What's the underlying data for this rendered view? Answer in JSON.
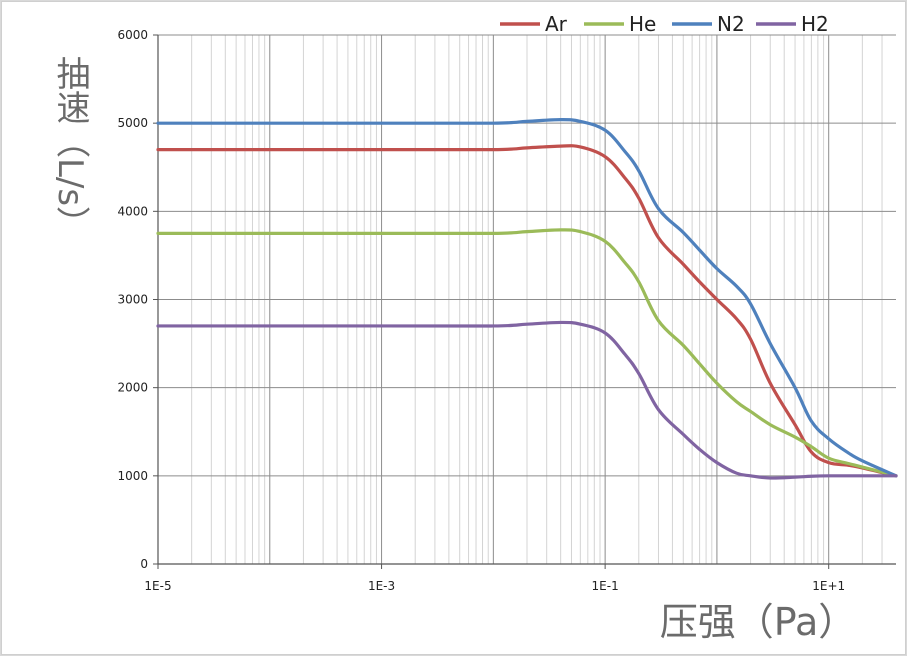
{
  "chart_data": {
    "type": "line",
    "xscale": "log",
    "xlim": [
      1e-05,
      40
    ],
    "ylim": [
      0,
      6000
    ],
    "ylabel": "抽速（L/s）",
    "xlabel": "压强（Pa）",
    "yticks": [
      0,
      1000,
      2000,
      3000,
      4000,
      5000,
      6000
    ],
    "ytick_labels": [
      "0",
      "1000",
      "2000",
      "3000",
      "4000",
      "5000",
      "6000"
    ],
    "xticks": [
      1e-05,
      0.001,
      0.1,
      10
    ],
    "xtick_labels": [
      "1E-5",
      "1E-3",
      "1E-1",
      "1E+1"
    ],
    "grid": true,
    "legend_position": "top",
    "series": [
      {
        "name": "Ar",
        "color": "#c0504d",
        "x": [
          1e-05,
          0.001,
          0.01,
          0.02,
          0.04,
          0.06,
          0.1,
          0.15,
          0.2,
          0.3,
          0.5,
          0.7,
          1,
          1.5,
          2,
          3,
          5,
          7,
          10,
          15,
          20,
          40
        ],
        "values": [
          4700,
          4700,
          4700,
          4720,
          4740,
          4730,
          4620,
          4380,
          4150,
          3700,
          3400,
          3200,
          3000,
          2780,
          2550,
          2050,
          1580,
          1270,
          1150,
          1120,
          1090,
          1000
        ]
      },
      {
        "name": "He",
        "color": "#9bbb59",
        "x": [
          1e-05,
          0.001,
          0.01,
          0.02,
          0.04,
          0.06,
          0.1,
          0.15,
          0.2,
          0.3,
          0.5,
          0.7,
          1,
          1.5,
          2,
          3,
          5,
          7,
          10,
          15,
          20,
          40
        ],
        "values": [
          3750,
          3750,
          3750,
          3770,
          3790,
          3770,
          3660,
          3420,
          3200,
          2760,
          2480,
          2270,
          2050,
          1840,
          1730,
          1580,
          1440,
          1330,
          1200,
          1140,
          1100,
          1000
        ]
      },
      {
        "name": "N2",
        "color": "#4f81bd",
        "x": [
          1e-05,
          0.001,
          0.01,
          0.02,
          0.04,
          0.06,
          0.1,
          0.15,
          0.2,
          0.3,
          0.5,
          0.7,
          1,
          1.5,
          2,
          3,
          5,
          7,
          10,
          15,
          20,
          40
        ],
        "values": [
          5000,
          5000,
          5000,
          5020,
          5040,
          5020,
          4920,
          4680,
          4460,
          4030,
          3760,
          3560,
          3350,
          3150,
          2950,
          2500,
          2000,
          1620,
          1420,
          1260,
          1170,
          1000
        ]
      },
      {
        "name": "H2",
        "color": "#8064a2",
        "x": [
          1e-05,
          0.001,
          0.01,
          0.02,
          0.04,
          0.06,
          0.1,
          0.15,
          0.2,
          0.3,
          0.5,
          0.7,
          1,
          1.5,
          2,
          3,
          5,
          7,
          10,
          15,
          20,
          40
        ],
        "values": [
          2700,
          2700,
          2700,
          2720,
          2740,
          2720,
          2620,
          2380,
          2160,
          1750,
          1470,
          1300,
          1150,
          1030,
          1000,
          975,
          985,
          995,
          1000,
          1000,
          1000,
          1000
        ]
      }
    ]
  }
}
